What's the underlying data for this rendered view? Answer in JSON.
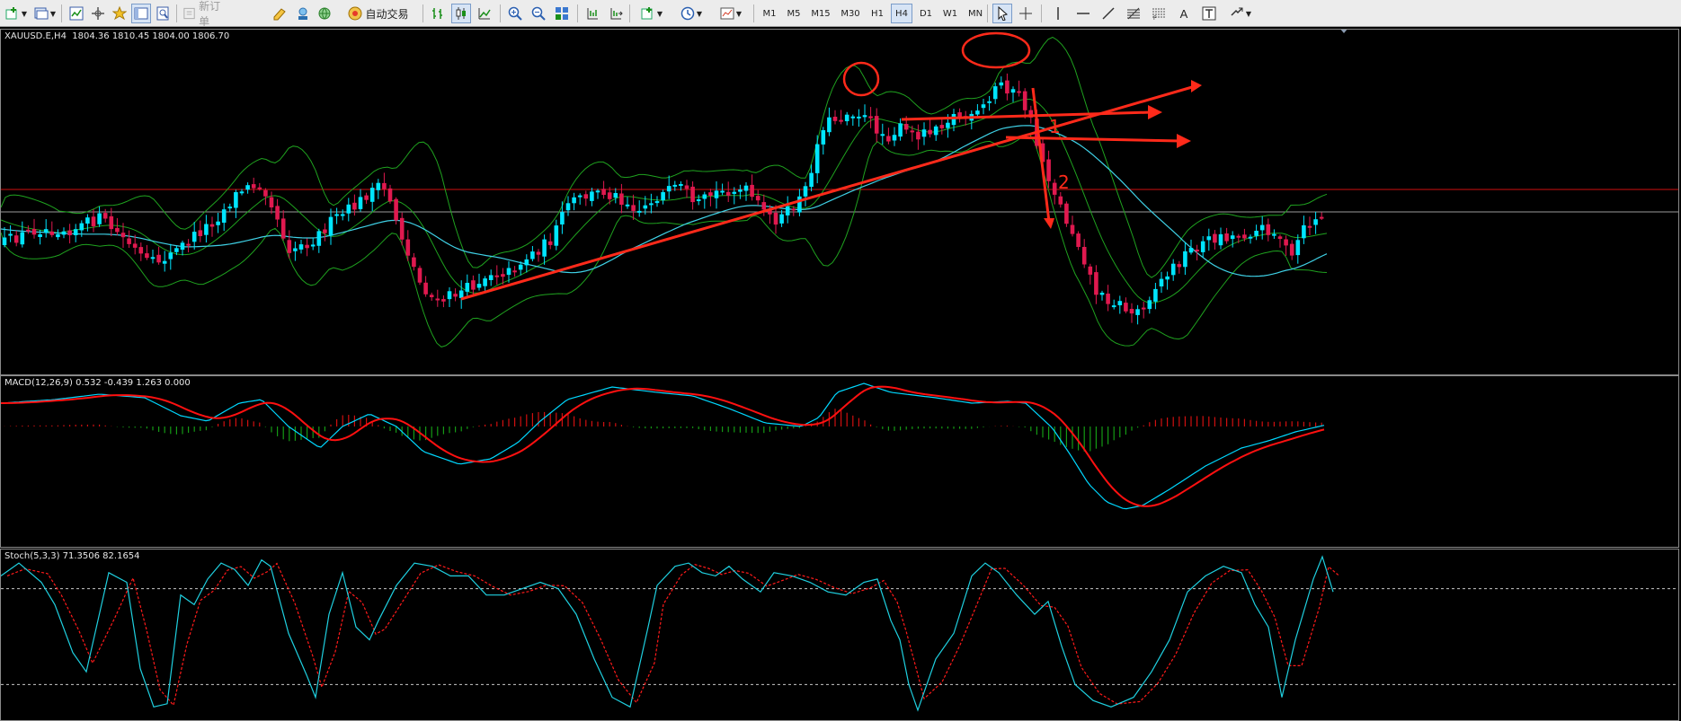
{
  "toolbar": {
    "new_order_label": "新订单",
    "auto_trading_label": "自动交易",
    "timeframes": [
      "M1",
      "M5",
      "M15",
      "M30",
      "H1",
      "H4",
      "D1",
      "W1",
      "MN"
    ],
    "active_timeframe": "H4",
    "text_tool_label": "A"
  },
  "chart": {
    "symbol_header": "XAUUSD.E,H4  1804.36 1810.45 1804.00 1806.70",
    "colors": {
      "bull": "#00e5ff",
      "bear": "#e0194f",
      "bollinger": "#1fa21f",
      "ma": "#3fd1e6",
      "hline_red": "#d01010",
      "hline_grey": "#9a9a9a",
      "annotation": "#ff2a1a"
    },
    "annotations": {
      "label_1": "1",
      "label_2": "2"
    }
  },
  "macd": {
    "header": "MACD(12,26,9) 0.532 -0.439 1.263 0.000",
    "colors": {
      "main": "#00d8ff",
      "signal": "#ff1010",
      "hist_pos": "#d01010",
      "hist_neg": "#159a15"
    }
  },
  "stoch": {
    "header": "Stoch(5,3,3) 71.3506 82.1654",
    "levels": [
      80,
      20
    ],
    "colors": {
      "main": "#1fd0e0",
      "signal": "#ff1a1a",
      "level": "#c8c8c8"
    }
  }
}
